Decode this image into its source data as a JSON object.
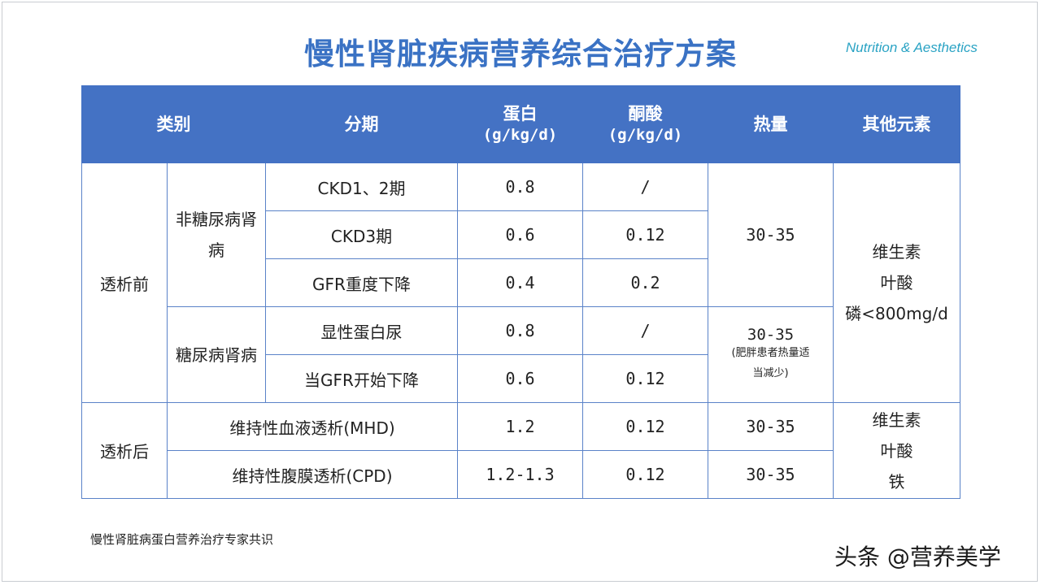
{
  "title": "慢性肾脏疾病营养综合治疗方案",
  "brand": "Nutrition & Aesthetics",
  "headers": {
    "category": "类别",
    "stage": "分期",
    "protein": "蛋白",
    "protein_unit": "(g/kg/d)",
    "ketoacid": "酮酸",
    "ketoacid_unit": "(g/kg/d)",
    "energy": "热量",
    "other": "其他元素"
  },
  "groups": {
    "pre_dialysis": "透析前",
    "non_diabetic": "非糖尿病肾病",
    "diabetic": "糖尿病肾病",
    "post_dialysis": "透析后"
  },
  "rows": [
    {
      "stage": "CKD1、2期",
      "protein": "0.8",
      "ketoacid": "/"
    },
    {
      "stage": "CKD3期",
      "protein": "0.6",
      "ketoacid": "0.12"
    },
    {
      "stage": "GFR重度下降",
      "protein": "0.4",
      "ketoacid": "0.2"
    },
    {
      "stage": "显性蛋白尿",
      "protein": "0.8",
      "ketoacid": "/"
    },
    {
      "stage": "当GFR开始下降",
      "protein": "0.6",
      "ketoacid": "0.12"
    },
    {
      "stage": "维持性血液透析(MHD)",
      "protein": "1.2",
      "ketoacid": "0.12",
      "energy": "30-35"
    },
    {
      "stage": "维持性腹膜透析(CPD)",
      "protein": "1.2-1.3",
      "ketoacid": "0.12",
      "energy": "30-35"
    }
  ],
  "energy": {
    "non_diabetic": "30-35",
    "diabetic": "30-35",
    "diabetic_note_1": "(肥胖患者热量适",
    "diabetic_note_2": "当减少)"
  },
  "other": {
    "pre_1": "维生素",
    "pre_2": "叶酸",
    "pre_3": "磷<800mg/d",
    "post_1": "维生素",
    "post_2": "叶酸",
    "post_3": "铁"
  },
  "footnote": "慢性肾脏病蛋白营养治疗专家共识",
  "watermark": "头条 @营养美学"
}
